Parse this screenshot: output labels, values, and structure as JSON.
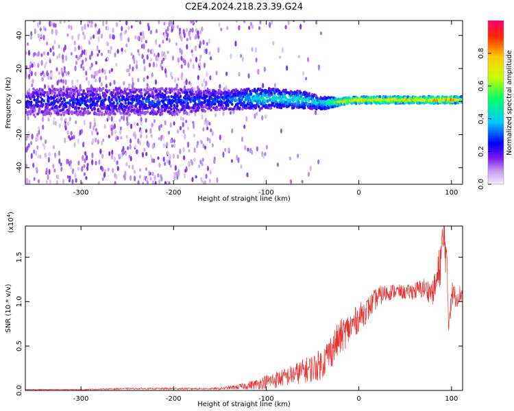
{
  "figure_title": "C2E4.2024.218.23.39.G24",
  "colorbar": {
    "label": "Normalized spectral amplitude",
    "ticks": [
      "0.0",
      "0.2",
      "0.4",
      "0.6",
      "0.8"
    ],
    "tick_values": [
      0.0,
      0.2,
      0.4,
      0.6,
      0.8
    ],
    "range": [
      0.0,
      1.0
    ],
    "colors": [
      "#f0e6fb",
      "#c79cf0",
      "#7a18f0",
      "#0000ff",
      "#00c8ff",
      "#00ff6a",
      "#c8ff00",
      "#ffd000",
      "#ff3000",
      "#ff006e"
    ]
  },
  "chart_data": [
    {
      "type": "heatmap",
      "title": "C2E4.2024.218.23.39.G24",
      "xlabel": "Height of straight line (km)",
      "ylabel": "Frequency (Hz)",
      "xlim": [
        -360,
        112
      ],
      "ylim": [
        -50,
        49
      ],
      "x_ticks": [
        -300,
        -200,
        -100,
        0,
        100
      ],
      "x_tick_labels": [
        "-300",
        "-200",
        "-100",
        "0",
        "100"
      ],
      "y_ticks": [
        -40,
        -20,
        0,
        20,
        40
      ],
      "y_tick_labels": [
        "-40",
        "-20",
        "0",
        "20",
        "40"
      ],
      "grid": false,
      "ridge": {
        "description_values": "dominant frequency band vs height",
        "height_km": [
          -360,
          -300,
          -200,
          -150,
          -100,
          -60,
          -40,
          -20,
          0,
          50,
          100,
          112
        ],
        "center_hz": [
          0,
          0,
          0,
          1,
          2,
          1,
          -1,
          0,
          1,
          1,
          1,
          1
        ],
        "half_width_hz": [
          8,
          8,
          8,
          6,
          6,
          5,
          4,
          2,
          2,
          2,
          2,
          2
        ],
        "amplitude": [
          0.25,
          0.25,
          0.28,
          0.3,
          0.45,
          0.45,
          0.4,
          0.75,
          0.8,
          0.8,
          0.85,
          0.7
        ]
      }
    },
    {
      "type": "line",
      "title": "",
      "xlabel": "Height of straight line (km)",
      "ylabel": "SNR (10 * v/v)",
      "y_multiplier_label": "(x10",
      "y_multiplier_exp": "4",
      "y_multiplier_close": ")",
      "xlim": [
        -360,
        112
      ],
      "ylim": [
        0,
        1.85
      ],
      "x_ticks": [
        -300,
        -200,
        -100,
        0,
        100
      ],
      "x_tick_labels": [
        "-300",
        "-200",
        "-100",
        "0",
        "100"
      ],
      "y_ticks": [
        0,
        0.5,
        1.0,
        1.5
      ],
      "y_tick_labels": [
        "0.0",
        "0.5",
        "1.0",
        "1.5"
      ],
      "grid": false,
      "series": [
        {
          "color": "#e8302c",
          "x": [
            -360,
            -300,
            -250,
            -200,
            -150,
            -130,
            -110,
            -100,
            -90,
            -80,
            -70,
            -60,
            -50,
            -40,
            -30,
            -20,
            -10,
            0,
            10,
            20,
            30,
            40,
            50,
            60,
            70,
            80,
            85,
            90,
            93,
            95,
            97,
            100,
            105,
            112
          ],
          "y": [
            0.01,
            0.01,
            0.02,
            0.02,
            0.02,
            0.04,
            0.07,
            0.1,
            0.12,
            0.15,
            0.18,
            0.22,
            0.25,
            0.3,
            0.45,
            0.6,
            0.7,
            0.82,
            0.92,
            1.05,
            1.1,
            1.12,
            1.1,
            1.12,
            1.15,
            1.1,
            1.25,
            1.6,
            1.75,
            1.3,
            0.8,
            1.1,
            1.05,
            1.1
          ],
          "noise": [
            0.005,
            0.005,
            0.008,
            0.01,
            0.01,
            0.03,
            0.06,
            0.08,
            0.1,
            0.1,
            0.12,
            0.14,
            0.16,
            0.18,
            0.2,
            0.2,
            0.18,
            0.16,
            0.14,
            0.12,
            0.1,
            0.08,
            0.08,
            0.1,
            0.12,
            0.14,
            0.25,
            0.3,
            0.3,
            0.3,
            0.3,
            0.15,
            0.12,
            0.1
          ]
        }
      ]
    }
  ]
}
